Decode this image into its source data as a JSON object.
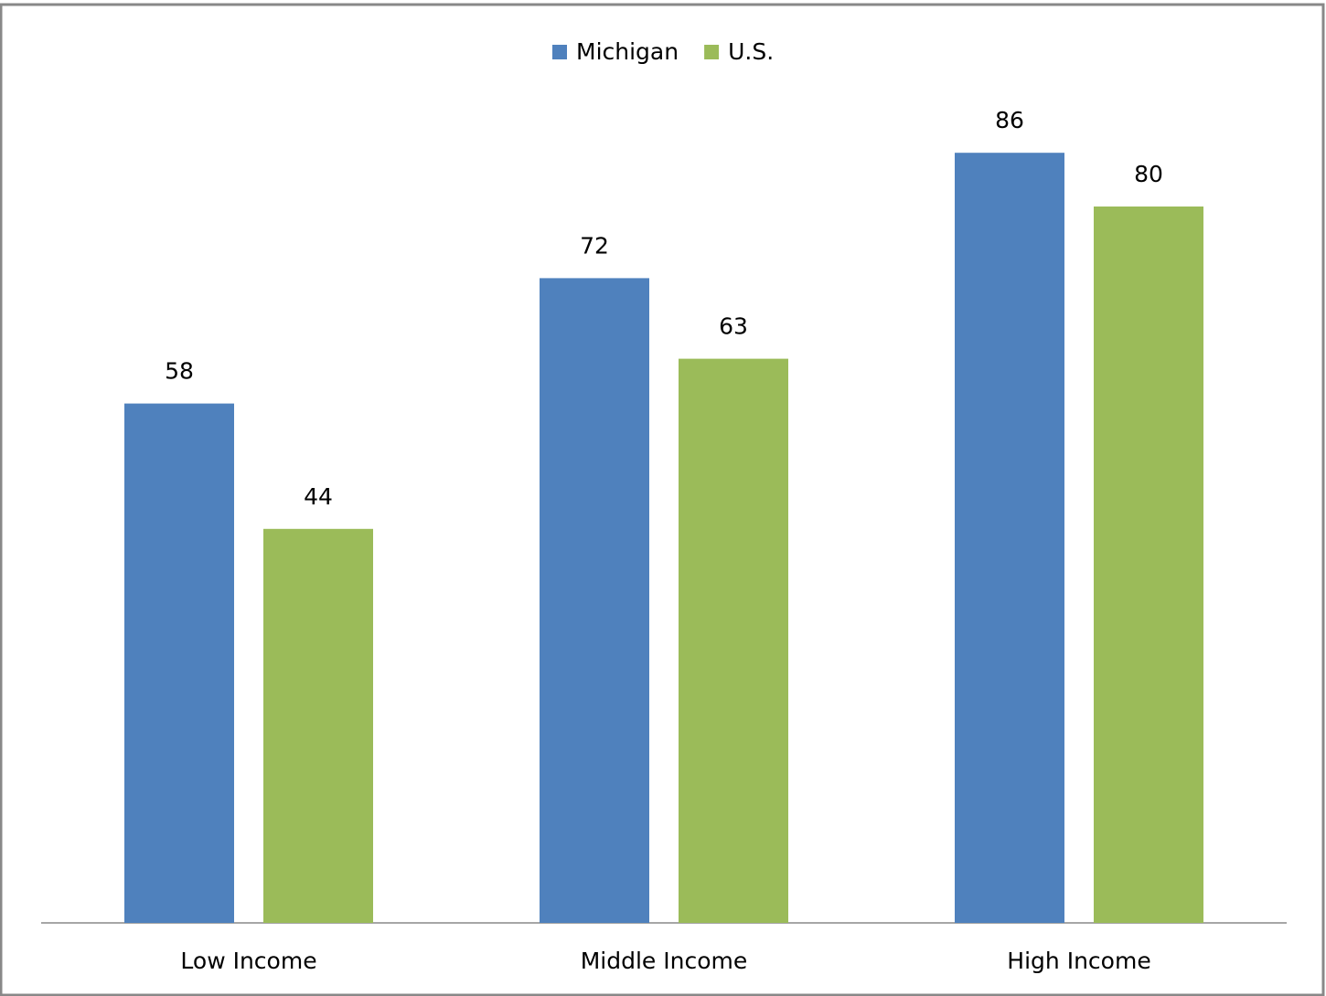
{
  "chart_data": {
    "type": "bar",
    "categories": [
      "Low Income",
      "Middle Income",
      "High Income"
    ],
    "series": [
      {
        "name": "Michigan",
        "color": "#4f81bd",
        "values": [
          58,
          72,
          86
        ]
      },
      {
        "name": "U.S.",
        "color": "#9bbb59",
        "values": [
          44,
          63,
          80
        ]
      }
    ],
    "legend": "top"
  }
}
